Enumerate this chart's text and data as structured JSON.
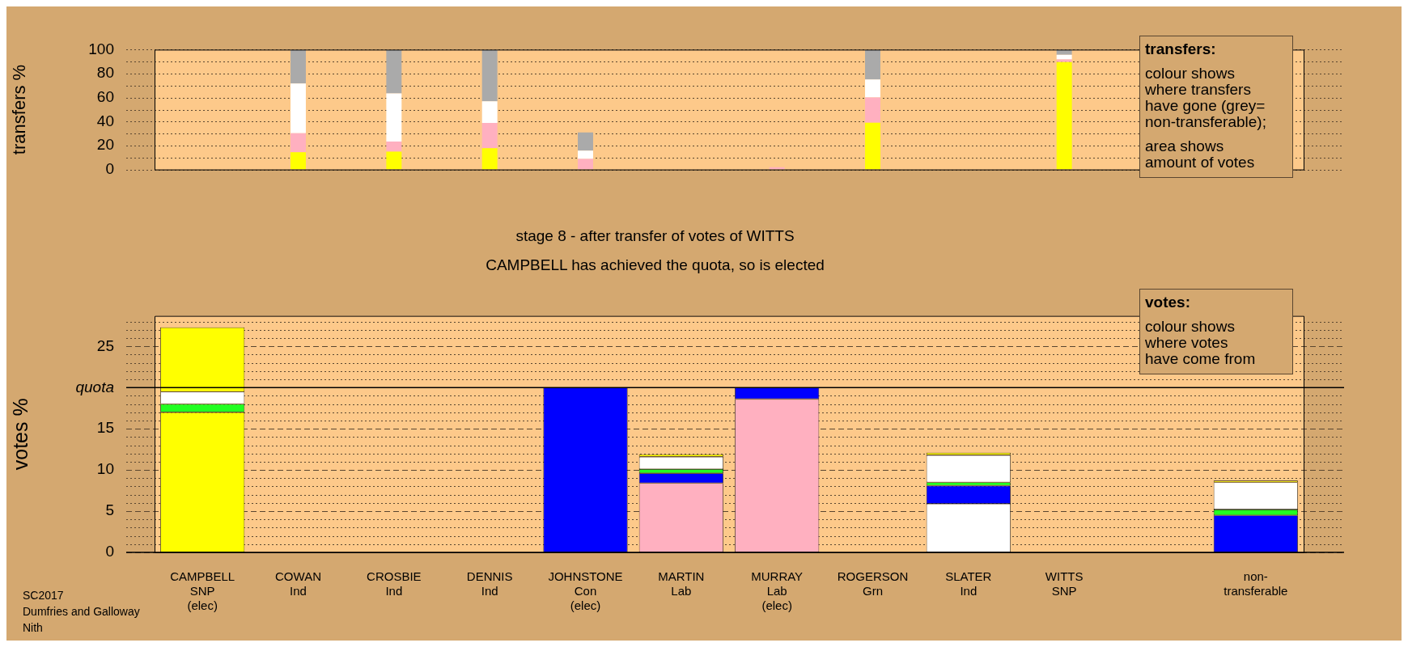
{
  "chart_data": [
    {
      "type": "bar",
      "stacked": true,
      "ylabel": "transfers %",
      "tick_labels": "y",
      "grid": "y",
      "categories": [
        null,
        null,
        null,
        null,
        null,
        null,
        null,
        null,
        null,
        null,
        null,
        null
      ],
      "ylim": [
        0,
        100
      ],
      "yticks": [
        0,
        {
          "value": 10,
          "label": null
        },
        20,
        {
          "value": 30,
          "label": null
        },
        40,
        {
          "value": 50,
          "label": null
        },
        60,
        {
          "value": 70,
          "label": null
        },
        80,
        {
          "value": 90,
          "label": null
        },
        100
      ],
      "series": [
        {
          "color": "#ffff00",
          "values": [
            null,
            14.4,
            14.9,
            17.8,
            null,
            null,
            null,
            39.0,
            null,
            89.7,
            null,
            null
          ]
        },
        {
          "color": "#ffb0c0",
          "values": [
            null,
            15.8,
            8.4,
            21.0,
            8.9,
            null,
            2.0,
            21.1,
            null,
            2.2,
            null,
            null
          ]
        },
        {
          "color": "#ffffff",
          "values": [
            null,
            41.6,
            40.2,
            18.1,
            6.9,
            null,
            null,
            15.0,
            null,
            3.8,
            null,
            null
          ]
        },
        {
          "color": "#aaaaaa",
          "values": [
            null,
            28.2,
            36.5,
            43.1,
            15.2,
            null,
            null,
            24.9,
            null,
            4.3,
            null,
            null
          ]
        }
      ],
      "annotations": [
        "transfers:",
        "colour shows\nwhere transfers\nhave gone (grey=\nnon-transferable);",
        "area shows\namount of votes"
      ]
    },
    {
      "type": "bar",
      "stacked": true,
      "title": "stage 8 - after transfer of votes of WITTS",
      "subtitle": "CAMPBELL has achieved the quota, so is elected",
      "ylabel": "votes %",
      "grid": "y",
      "categories": [
        "CAMPBELL\nSNP\n(elec)",
        "COWAN\nInd",
        "CROSBIE\nInd",
        "DENNIS\nInd",
        "JOHNSTONE\nCon\n(elec)",
        "MARTIN\nLab",
        "MURRAY\nLab\n(elec)",
        "ROGERSON\nGrn",
        "SLATER\nInd",
        "WITTS\nSNP",
        null,
        "non-\ntransferable"
      ],
      "ylim": [
        0,
        28.7
      ],
      "yticks": [
        0,
        {
          "value": 1,
          "label": null
        },
        {
          "value": 2,
          "label": null
        },
        {
          "value": 3,
          "label": null
        },
        {
          "value": 4,
          "label": null
        },
        5,
        {
          "value": 6,
          "label": null
        },
        {
          "value": 7,
          "label": null
        },
        {
          "value": 8,
          "label": null
        },
        {
          "value": 9,
          "label": null
        },
        10,
        {
          "value": 11,
          "label": null
        },
        {
          "value": 12,
          "label": null
        },
        {
          "value": 13,
          "label": null
        },
        {
          "value": 14,
          "label": null
        },
        15,
        {
          "value": 16,
          "label": null
        },
        {
          "value": 17,
          "label": null
        },
        {
          "value": 18,
          "label": null
        },
        {
          "value": 19,
          "label": null
        },
        {
          "value": 20,
          "label": "quota"
        },
        {
          "value": 21,
          "label": null
        },
        {
          "value": 22,
          "label": null
        },
        {
          "value": 23,
          "label": null
        },
        {
          "value": 24,
          "label": null
        },
        25,
        {
          "value": 26,
          "label": null
        },
        {
          "value": 27,
          "label": null
        },
        {
          "value": 28,
          "label": null
        }
      ],
      "ref_lines": [
        {
          "axis": "y",
          "value": 20,
          "color": "#000000"
        }
      ],
      "series": [
        {
          "colors": [
            "#ffff00",
            null,
            null,
            null,
            "#0000ff",
            "#ffb0c0",
            "#ffb0c0",
            null,
            "#ffffff",
            null,
            null,
            "#0000ff"
          ],
          "values": [
            17.0,
            null,
            null,
            null,
            20.0,
            8.4,
            18.6,
            null,
            5.9,
            null,
            null,
            4.5
          ]
        },
        {
          "colors": [
            "#22ff22",
            null,
            null,
            null,
            null,
            "#0000ff",
            "#0000ff",
            null,
            "#0000ff",
            null,
            null,
            "#22ff22"
          ],
          "values": [
            1.0,
            null,
            null,
            null,
            null,
            1.2,
            1.4,
            null,
            2.2,
            null,
            null,
            0.7
          ]
        },
        {
          "colors": [
            "#ffffff",
            null,
            null,
            null,
            null,
            "#22ff22",
            null,
            null,
            "#22ff22",
            null,
            null,
            "#ffffff"
          ],
          "values": [
            1.5,
            null,
            null,
            null,
            null,
            0.5,
            null,
            null,
            0.4,
            null,
            null,
            3.3
          ]
        },
        {
          "colors": [
            "#ffff00",
            null,
            null,
            null,
            null,
            "#ffffff",
            null,
            null,
            "#ffffff",
            null,
            null,
            "#ffff00"
          ],
          "values": [
            7.8,
            null,
            null,
            null,
            null,
            1.5,
            null,
            null,
            3.3,
            null,
            null,
            0.2
          ]
        },
        {
          "colors": [
            null,
            null,
            null,
            null,
            null,
            "#ffff00",
            null,
            null,
            "#ffff00",
            null,
            null,
            null
          ],
          "values": [
            null,
            null,
            null,
            null,
            null,
            0.3,
            null,
            null,
            0.3,
            null,
            null,
            null
          ]
        }
      ],
      "annotations": [
        "votes:",
        "colour shows\nwhere votes\nhave come from"
      ]
    },
    {
      "type": "other",
      "annotations": [
        "SC2017",
        "Dumfries and Galloway",
        "Nith"
      ]
    }
  ]
}
